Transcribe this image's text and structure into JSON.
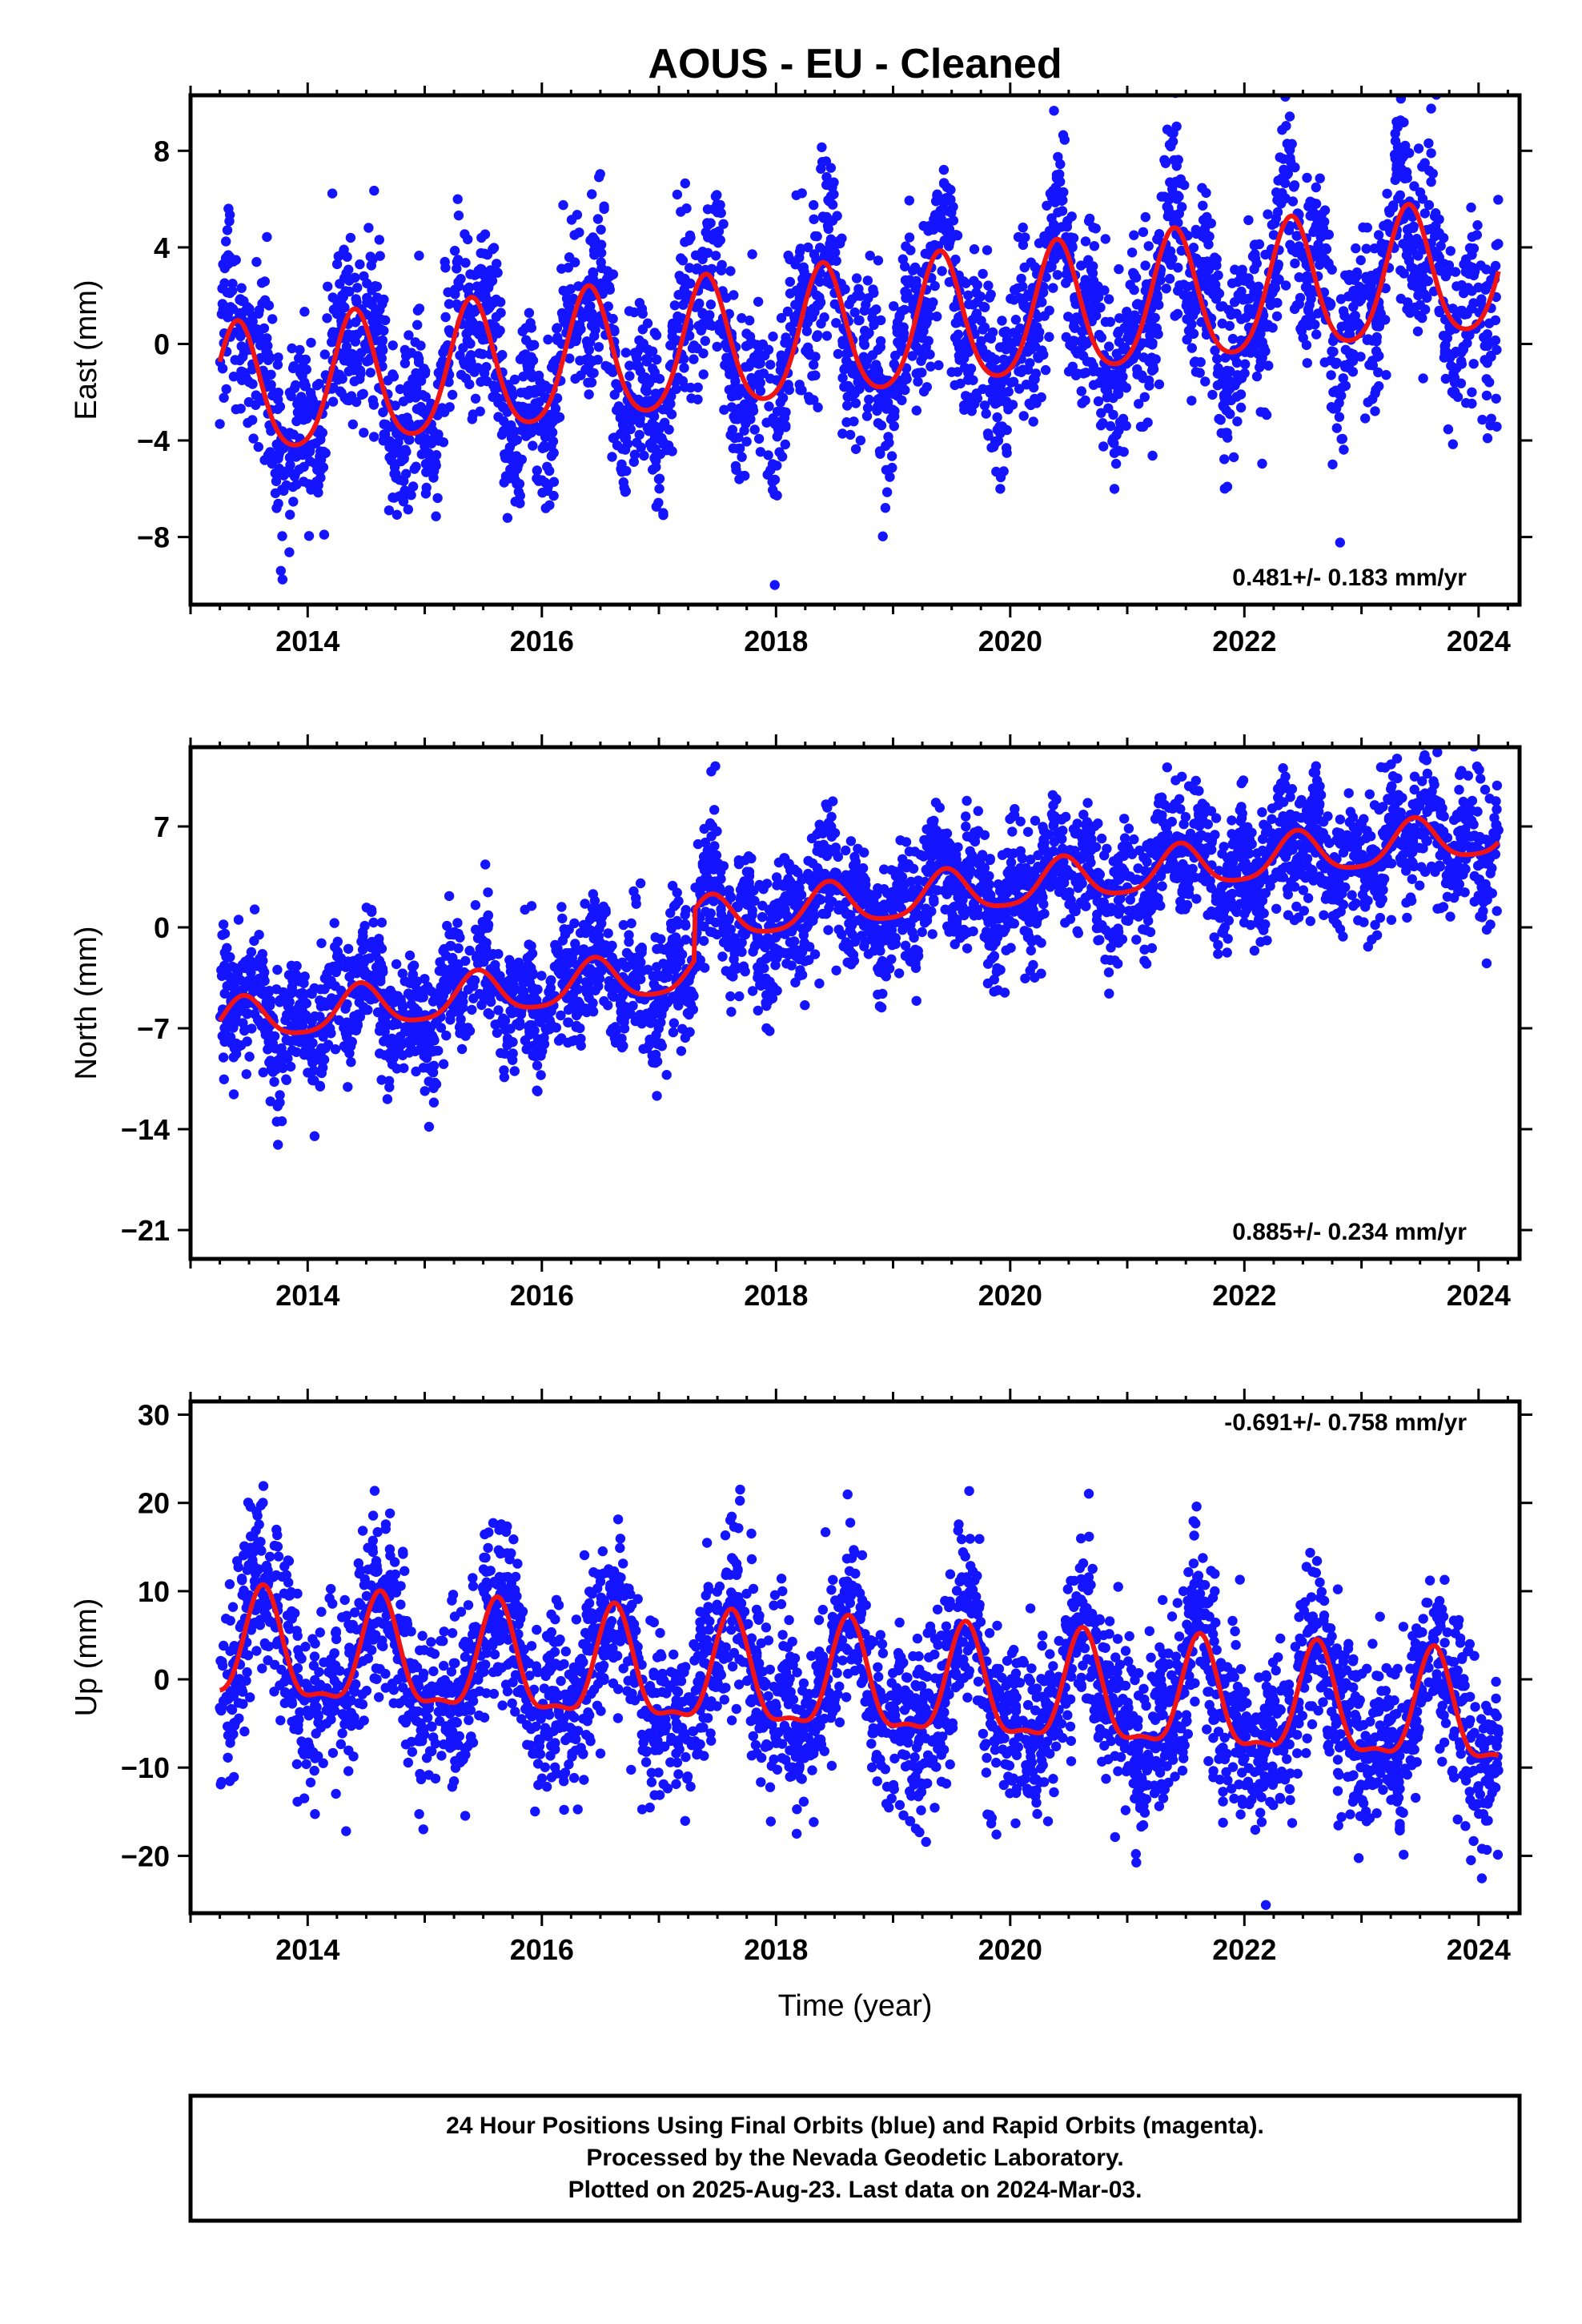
{
  "title": "AOUS  - EU - Cleaned",
  "chart_data": [
    {
      "type": "scatter",
      "panel": "east",
      "ylabel": "East (mm)",
      "xlabel": "",
      "xlim": [
        2013.0,
        2024.35
      ],
      "ylim": [
        -10.8,
        10.3
      ],
      "x_ticks": [
        2014,
        2016,
        2018,
        2020,
        2022,
        2024
      ],
      "y_ticks": [
        -8,
        -4,
        0,
        4,
        8
      ],
      "y_tick_labels": [
        "−8",
        "−4",
        "0",
        "4",
        "8"
      ],
      "rate_text": "0.481+/- 0.183 mm/yr",
      "rate_placement": "bottom-right",
      "data_start": 2013.25,
      "data_end": 2024.17,
      "model": {
        "offset": -2.2,
        "rate": 0.481,
        "annual_amp": 2.7,
        "annual_phase_peak": 0.4,
        "semi_amp": 0.4
      },
      "offsets": [
        {
          "at": 2017.2,
          "shift": 0.0
        }
      ],
      "scatter_sigma": 1.8,
      "colors": {
        "points": "#1414ff",
        "model": "#f01414"
      }
    },
    {
      "type": "scatter",
      "panel": "north",
      "ylabel": "North (mm)",
      "xlabel": "",
      "xlim": [
        2013.0,
        2024.35
      ],
      "ylim": [
        -23.0,
        12.5
      ],
      "x_ticks": [
        2014,
        2016,
        2018,
        2020,
        2022,
        2024
      ],
      "y_ticks": [
        -21,
        -14,
        -7,
        0,
        7
      ],
      "y_tick_labels": [
        "−21",
        "−14",
        "−7",
        "0",
        "7"
      ],
      "rate_text": "0.885+/- 0.234 mm/yr",
      "rate_placement": "bottom-right",
      "data_start": 2013.25,
      "data_end": 2024.17,
      "model": {
        "offset": -6.7,
        "rate": 0.885,
        "annual_amp": 1.5,
        "annual_phase_peak": 0.45,
        "semi_amp": 0.3
      },
      "offsets": [
        {
          "at": 2017.3,
          "shift": 3.5
        }
      ],
      "scatter_sigma": 2.2,
      "colors": {
        "points": "#1414ff",
        "model": "#f01414"
      }
    },
    {
      "type": "scatter",
      "panel": "up",
      "ylabel": "Up (mm)",
      "xlabel": "Time (year)",
      "xlim": [
        2013.0,
        2024.35
      ],
      "ylim": [
        -26.5,
        31.5
      ],
      "x_ticks": [
        2014,
        2016,
        2018,
        2020,
        2022,
        2024
      ],
      "y_ticks": [
        -20,
        -10,
        0,
        10,
        20,
        30
      ],
      "y_tick_labels": [
        "−20",
        "−10",
        "0",
        "10",
        "20",
        "30"
      ],
      "rate_text": "-0.691+/- 0.758 mm/yr",
      "rate_placement": "top-right",
      "data_start": 2013.25,
      "data_end": 2024.17,
      "model": {
        "offset": 3.0,
        "rate": -0.691,
        "annual_amp": 6.0,
        "annual_phase_peak": 0.62,
        "semi_amp": 2.0
      },
      "offsets": [],
      "scatter_sigma": 5.0,
      "colors": {
        "points": "#1414ff",
        "model": "#f01414"
      }
    }
  ],
  "footer": {
    "line1": "24 Hour Positions Using Final Orbits (blue) and Rapid Orbits (magenta).",
    "line2": "Processed by the Nevada Geodetic Laboratory.",
    "line3": "Plotted on 2025-Aug-23. Last data on 2024-Mar-03."
  }
}
